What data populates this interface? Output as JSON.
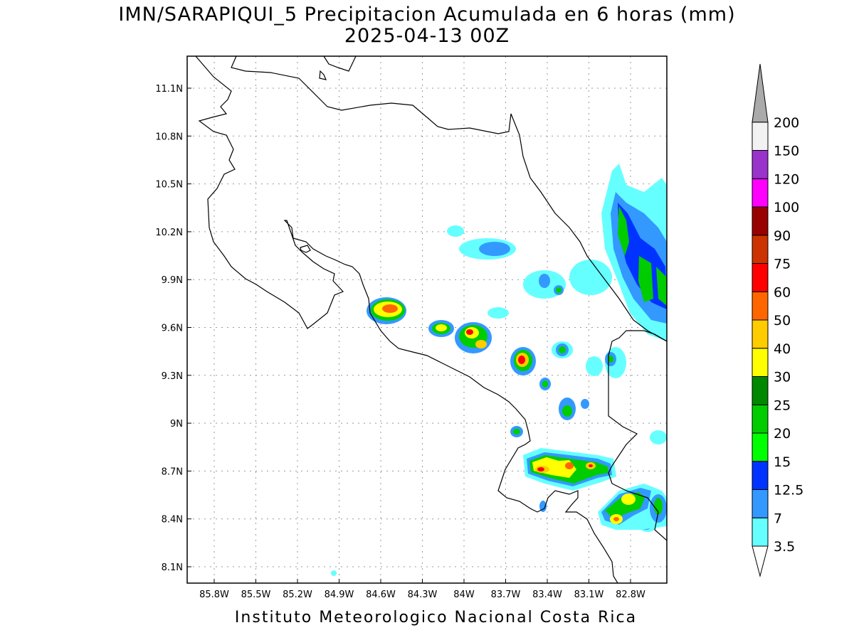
{
  "title": {
    "line1": "IMN/SARAPIQUI_5 Precipitacion Acumulada en 6 horas (mm)",
    "line2": "2025-04-13 00Z"
  },
  "footer": "Instituto Meteorologico Nacional Costa Rica",
  "map": {
    "lon_range": [
      -86.0,
      -83.0
    ],
    "lat_range": [
      8.0,
      11.2
    ],
    "lon_ticks": [
      "85.8W",
      "85.5W",
      "85.2W",
      "84.9W",
      "84.6W",
      "84.3W",
      "84W",
      "83.7W",
      "83.4W",
      "83.1W",
      "82.8W"
    ],
    "lat_ticks": [
      "11.1N",
      "10.8N",
      "10.5N",
      "10.2N",
      "9.9N",
      "9.6N",
      "9.3N",
      "9N",
      "8.7N",
      "8.4N",
      "8.1N"
    ],
    "grid": true
  },
  "colorbar": {
    "levels": [
      "3.5",
      "7",
      "12.5",
      "15",
      "20",
      "25",
      "30",
      "40",
      "50",
      "60",
      "75",
      "90",
      "100",
      "120",
      "150",
      "200"
    ],
    "colors": [
      "#66ffff",
      "#3399ff",
      "#0033ff",
      "#00ff00",
      "#00cc00",
      "#008800",
      "#ffff00",
      "#ffcc00",
      "#ff6600",
      "#ff0000",
      "#cc3300",
      "#990000",
      "#ff00ff",
      "#9933cc",
      "#f2f2f2",
      "#aaaaaa"
    ]
  }
}
